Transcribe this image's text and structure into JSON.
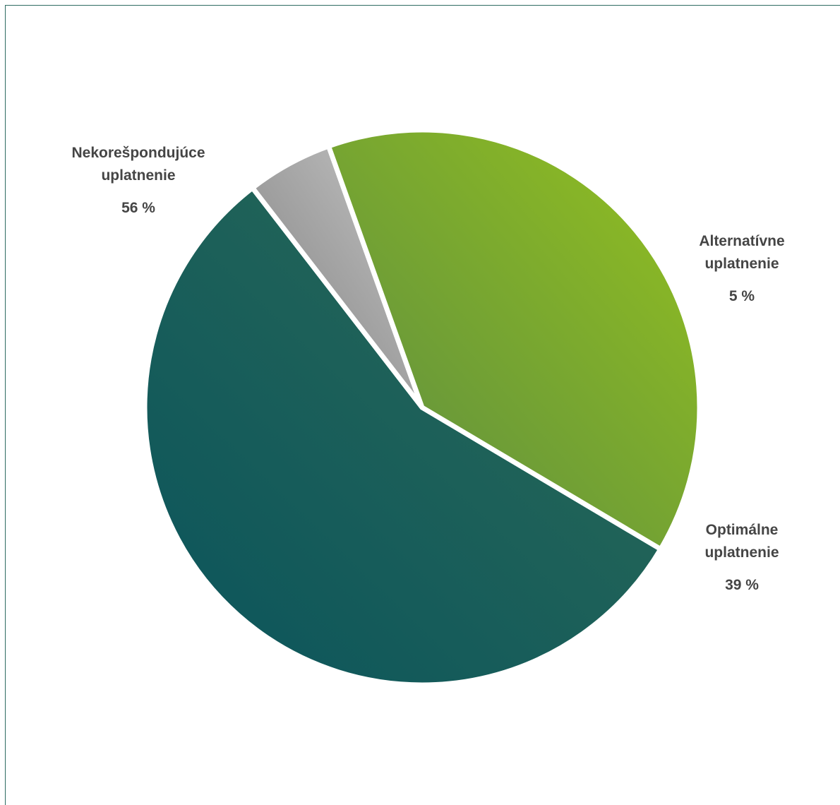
{
  "chart_data": {
    "type": "pie",
    "title": "",
    "slices": [
      {
        "label": "Nekorešpondujúce\nuplatnenie",
        "value": 56,
        "value_label": "56 %",
        "color_start": "#2d6b56",
        "color_end": "#0a545c"
      },
      {
        "label": "Alternatívne\nuplatnenie",
        "value": 5,
        "value_label": "5 %",
        "color_start": "#c6c6c6",
        "color_end": "#7e7e7e"
      },
      {
        "label": "Optimálne\nuplatnenie",
        "value": 39,
        "value_label": "39 %",
        "color_start": "#94c11f",
        "color_end": "#5a8a43"
      }
    ],
    "exploded": true,
    "legend": "none"
  }
}
